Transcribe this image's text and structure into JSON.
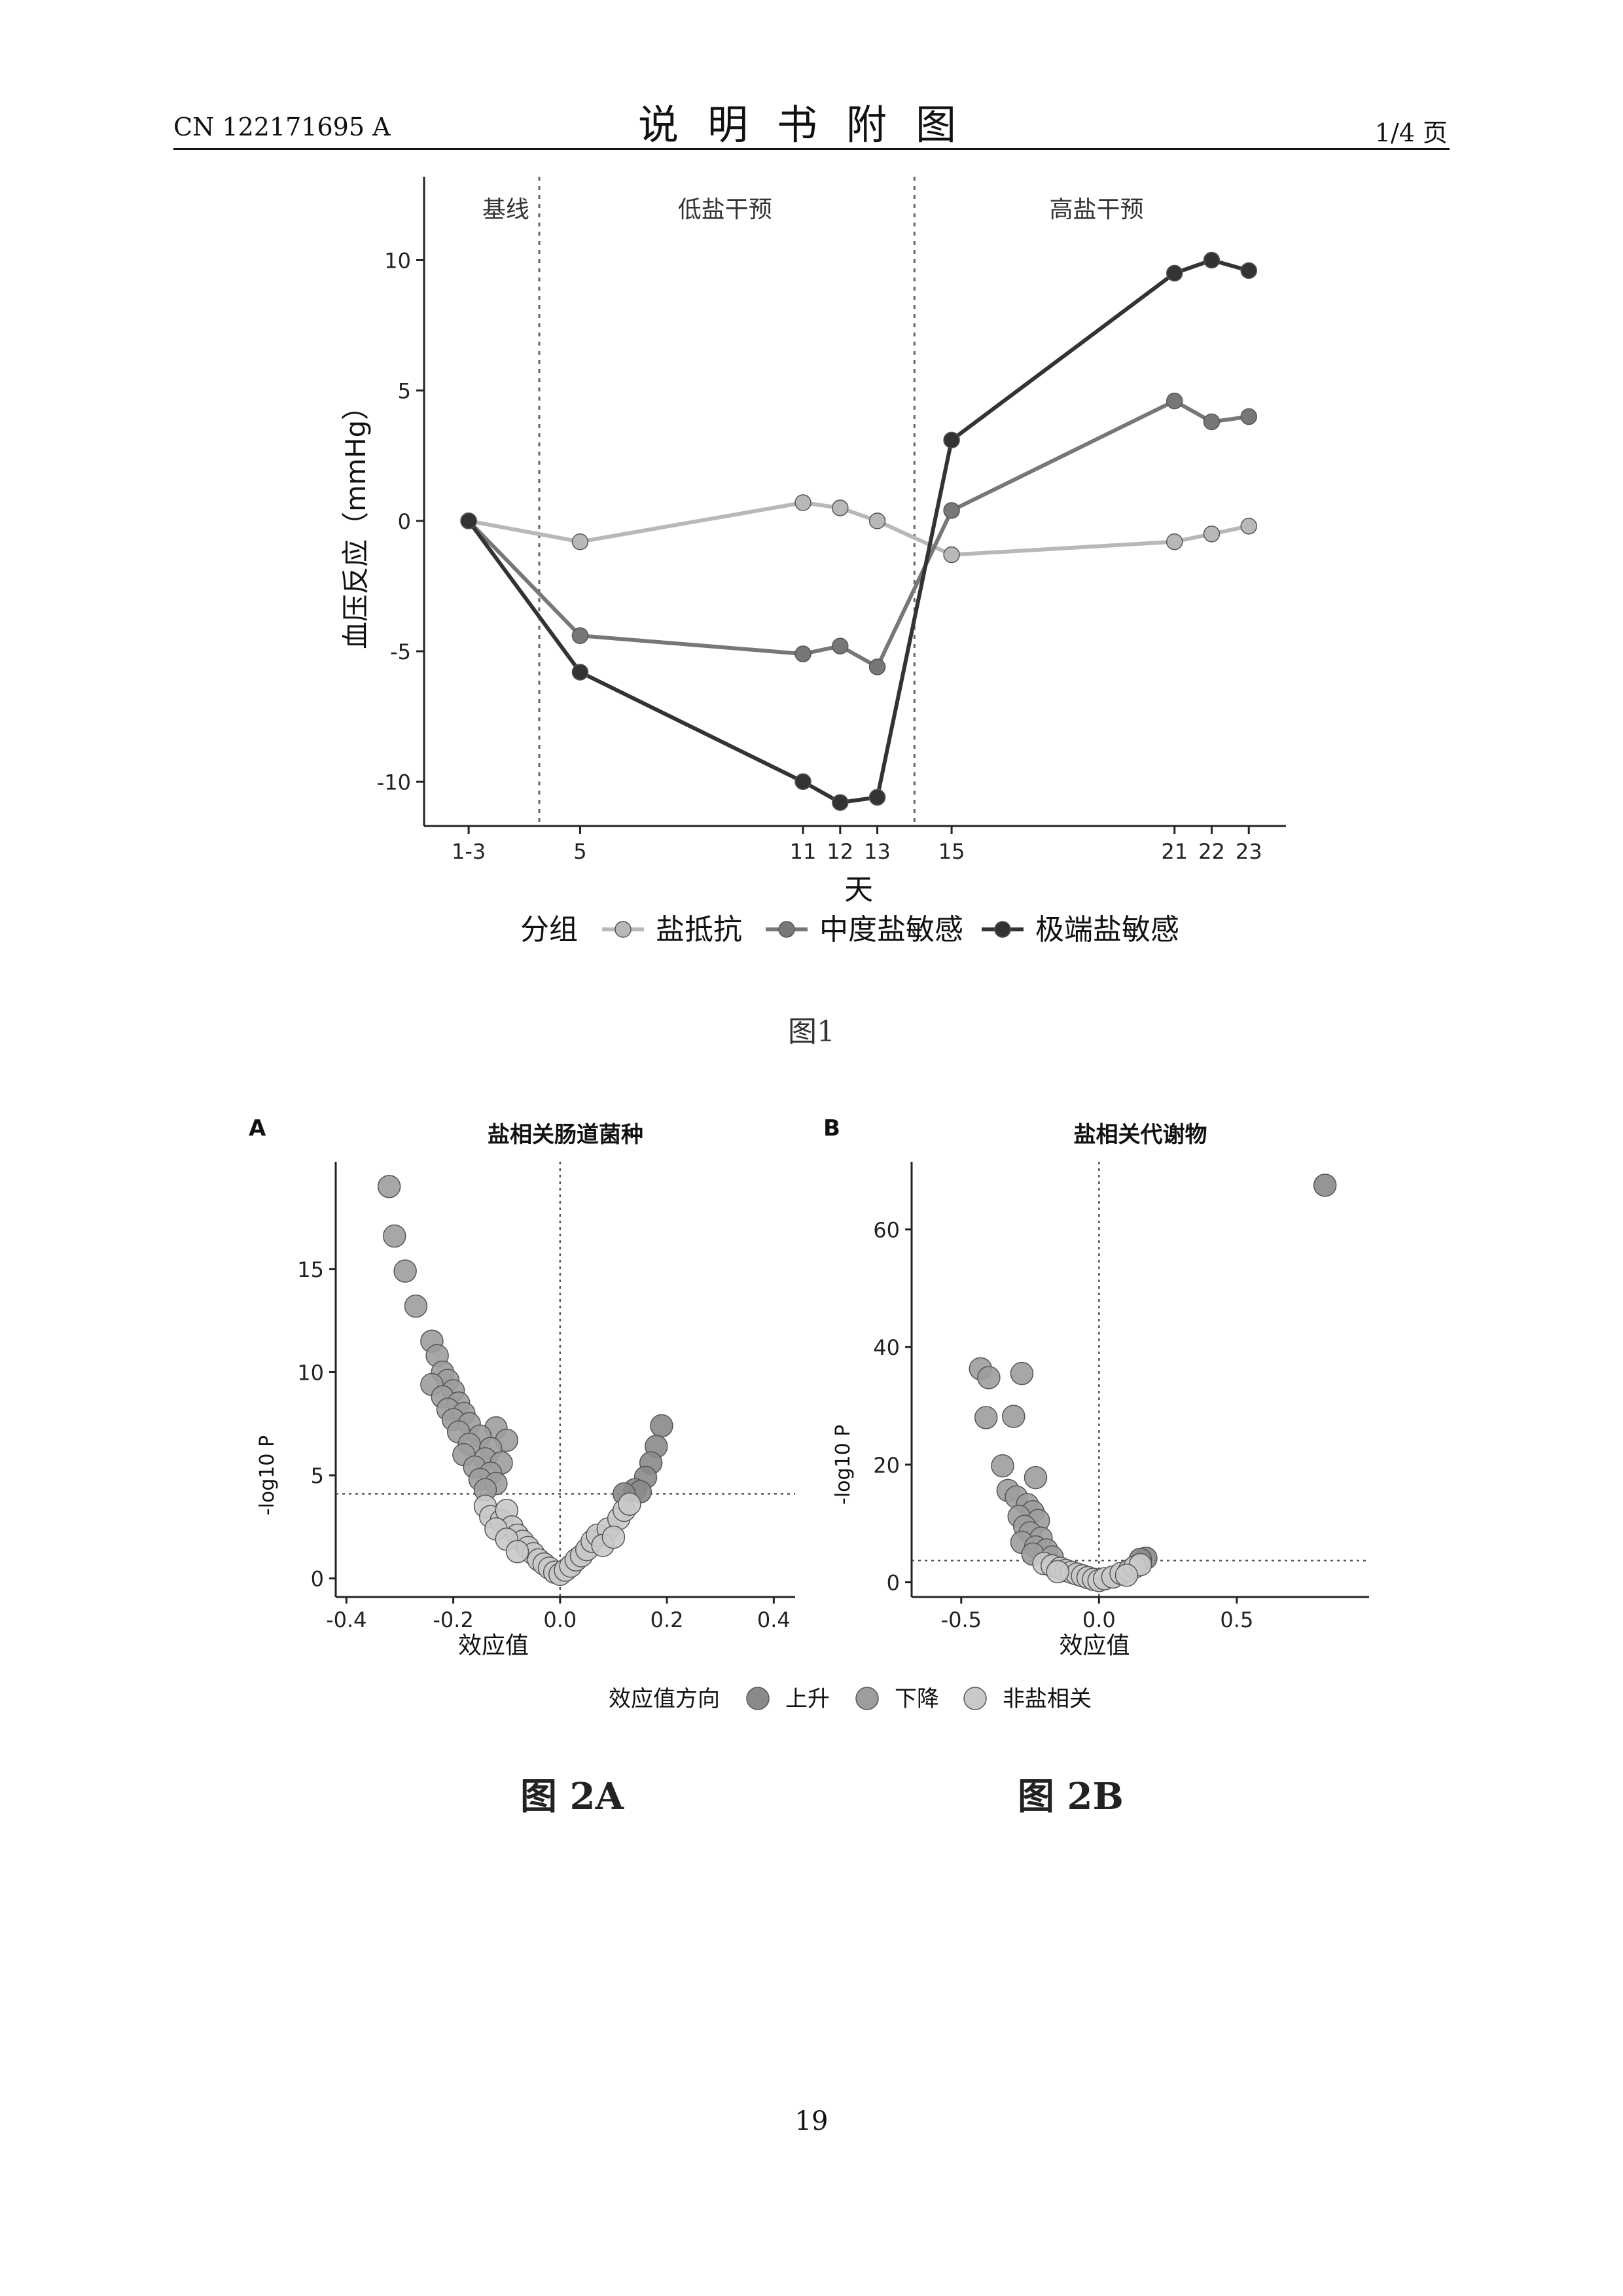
{
  "header": {
    "doc_number": "CN 122171695 A",
    "title": "说明书附图",
    "page_label": "1/4 页"
  },
  "figure1": {
    "caption": "图1",
    "chart_data": {
      "type": "line",
      "title": "",
      "xlabel": "天",
      "ylabel": "血压反应（mmHg）",
      "x_ticks": [
        "1-3",
        "5",
        "11",
        "12",
        "13",
        "15",
        "21",
        "22",
        "23"
      ],
      "x_values": [
        2,
        5,
        11,
        12,
        13,
        15,
        21,
        22,
        23
      ],
      "xlim": [
        0.8,
        24
      ],
      "ylim": [
        -11.7,
        13.2
      ],
      "y_ticks": [
        -10,
        -5,
        0,
        5,
        10
      ],
      "phases": [
        {
          "label": "基线",
          "center": 3.0
        },
        {
          "label": "低盐干预",
          "center": 8.9
        },
        {
          "label": "高盐干预",
          "center": 18.9
        }
      ],
      "phase_dividers": [
        3.9,
        14.0
      ],
      "legend_title": "分组",
      "series": [
        {
          "name": "盐抵抗",
          "color": "#b8b8b8",
          "values": [
            0,
            -0.8,
            0.7,
            0.5,
            0,
            -1.3,
            -0.8,
            -0.5,
            -0.2
          ]
        },
        {
          "name": "中度盐敏感",
          "color": "#777777",
          "values": [
            0,
            -4.4,
            -5.1,
            -4.8,
            -5.6,
            0.4,
            4.6,
            3.8,
            4.0
          ]
        },
        {
          "name": "极端盐敏感",
          "color": "#333333",
          "values": [
            0,
            -5.8,
            -10.0,
            -10.8,
            -10.6,
            3.1,
            9.5,
            10.0,
            9.6
          ]
        }
      ]
    }
  },
  "figure2": {
    "legend": {
      "title": "效应值方向",
      "items": [
        {
          "name": "上升",
          "color": "#8a8a8a"
        },
        {
          "name": "下降",
          "color": "#9d9d9d"
        },
        {
          "name": "非盐相关",
          "color": "#c9c9c9"
        }
      ]
    },
    "panels": [
      {
        "letter": "A",
        "caption": "图 2A",
        "chart_data": {
          "type": "scatter",
          "title": "盐相关肠道菌种",
          "xlabel": "效应值",
          "ylabel": "-log10 P",
          "xlim": [
            -0.42,
            0.44
          ],
          "ylim": [
            -0.9,
            20.2
          ],
          "x_ticks": [
            -0.4,
            -0.2,
            0.0,
            0.2,
            0.4
          ],
          "x_tick_labels": [
            "-0.4",
            "-0.2",
            "0.0",
            "0.2",
            "0.4"
          ],
          "y_ticks": [
            0,
            5,
            10,
            15
          ],
          "threshold_y": 4.1,
          "points": [
            [
              -0.32,
              19.0,
              "down"
            ],
            [
              -0.31,
              16.6,
              "down"
            ],
            [
              -0.29,
              14.9,
              "down"
            ],
            [
              -0.27,
              13.2,
              "down"
            ],
            [
              -0.24,
              11.5,
              "down"
            ],
            [
              -0.23,
              10.8,
              "down"
            ],
            [
              -0.22,
              10.0,
              "down"
            ],
            [
              -0.21,
              9.6,
              "down"
            ],
            [
              -0.24,
              9.4,
              "down"
            ],
            [
              -0.2,
              9.1,
              "down"
            ],
            [
              -0.22,
              8.8,
              "down"
            ],
            [
              -0.19,
              8.5,
              "down"
            ],
            [
              -0.21,
              8.2,
              "down"
            ],
            [
              -0.18,
              8.0,
              "down"
            ],
            [
              -0.2,
              7.7,
              "down"
            ],
            [
              -0.17,
              7.5,
              "down"
            ],
            [
              -0.12,
              7.3,
              "down"
            ],
            [
              -0.19,
              7.1,
              "down"
            ],
            [
              -0.15,
              6.9,
              "down"
            ],
            [
              -0.1,
              6.7,
              "down"
            ],
            [
              -0.17,
              6.5,
              "down"
            ],
            [
              -0.13,
              6.3,
              "down"
            ],
            [
              -0.18,
              6.0,
              "down"
            ],
            [
              -0.14,
              5.8,
              "down"
            ],
            [
              -0.11,
              5.6,
              "down"
            ],
            [
              -0.16,
              5.4,
              "down"
            ],
            [
              -0.13,
              5.1,
              "down"
            ],
            [
              -0.15,
              4.8,
              "down"
            ],
            [
              -0.12,
              4.6,
              "down"
            ],
            [
              -0.14,
              4.3,
              "down"
            ],
            [
              0.19,
              7.4,
              "up"
            ],
            [
              0.18,
              6.4,
              "up"
            ],
            [
              0.17,
              5.6,
              "up"
            ],
            [
              0.16,
              4.9,
              "up"
            ],
            [
              0.14,
              4.3,
              "up"
            ],
            [
              0.15,
              4.2,
              "up"
            ],
            [
              0.12,
              4.1,
              "up"
            ],
            [
              -0.14,
              3.5,
              "ns"
            ],
            [
              -0.13,
              3.0,
              "ns"
            ],
            [
              -0.11,
              2.8,
              "ns"
            ],
            [
              -0.1,
              3.3,
              "ns"
            ],
            [
              -0.09,
              2.5,
              "ns"
            ],
            [
              -0.08,
              2.1,
              "ns"
            ],
            [
              -0.12,
              2.4,
              "ns"
            ],
            [
              -0.07,
              1.8,
              "ns"
            ],
            [
              -0.06,
              1.5,
              "ns"
            ],
            [
              -0.05,
              1.2,
              "ns"
            ],
            [
              -0.04,
              0.9,
              "ns"
            ],
            [
              -0.03,
              0.7,
              "ns"
            ],
            [
              -0.02,
              0.5,
              "ns"
            ],
            [
              -0.01,
              0.3,
              "ns"
            ],
            [
              0.0,
              0.2,
              "ns"
            ],
            [
              0.01,
              0.4,
              "ns"
            ],
            [
              0.02,
              0.6,
              "ns"
            ],
            [
              0.03,
              0.9,
              "ns"
            ],
            [
              0.04,
              1.1,
              "ns"
            ],
            [
              0.05,
              1.4,
              "ns"
            ],
            [
              0.06,
              1.8,
              "ns"
            ],
            [
              0.07,
              2.1,
              "ns"
            ],
            [
              0.09,
              2.4,
              "ns"
            ],
            [
              0.11,
              2.9,
              "ns"
            ],
            [
              0.12,
              3.3,
              "ns"
            ],
            [
              0.13,
              3.6,
              "ns"
            ],
            [
              -0.1,
              1.9,
              "ns"
            ],
            [
              -0.08,
              1.3,
              "ns"
            ],
            [
              0.08,
              1.6,
              "ns"
            ],
            [
              0.1,
              2.0,
              "ns"
            ]
          ]
        }
      },
      {
        "letter": "B",
        "caption": "图 2B",
        "chart_data": {
          "type": "scatter",
          "title": "盐相关代谢物",
          "xlabel": "效应值",
          "ylabel": "-log10 P",
          "xlim": [
            -0.68,
            0.98
          ],
          "ylim": [
            -2.5,
            71.5
          ],
          "x_ticks": [
            -0.5,
            0.0,
            0.5
          ],
          "x_tick_labels": [
            "-0.5",
            "0.0",
            "0.5"
          ],
          "y_ticks": [
            0,
            20,
            40,
            60
          ],
          "threshold_y": 3.7,
          "points": [
            [
              0.82,
              67.5,
              "up"
            ],
            [
              -0.43,
              36.3,
              "down"
            ],
            [
              -0.4,
              34.8,
              "down"
            ],
            [
              -0.28,
              35.5,
              "down"
            ],
            [
              -0.41,
              28.0,
              "down"
            ],
            [
              -0.31,
              28.2,
              "down"
            ],
            [
              -0.35,
              19.8,
              "down"
            ],
            [
              -0.23,
              17.8,
              "down"
            ],
            [
              -0.33,
              15.6,
              "down"
            ],
            [
              -0.3,
              14.5,
              "down"
            ],
            [
              -0.26,
              13.2,
              "down"
            ],
            [
              -0.24,
              12.0,
              "down"
            ],
            [
              -0.29,
              11.2,
              "down"
            ],
            [
              -0.22,
              10.5,
              "down"
            ],
            [
              -0.27,
              9.5,
              "down"
            ],
            [
              -0.25,
              8.4,
              "down"
            ],
            [
              -0.21,
              7.5,
              "down"
            ],
            [
              -0.28,
              6.8,
              "down"
            ],
            [
              -0.23,
              6.0,
              "down"
            ],
            [
              -0.19,
              5.5,
              "down"
            ],
            [
              -0.24,
              4.8,
              "down"
            ],
            [
              -0.17,
              4.3,
              "down"
            ],
            [
              0.17,
              4.1,
              "up"
            ],
            [
              0.15,
              3.9,
              "up"
            ],
            [
              -0.2,
              3.2,
              "ns"
            ],
            [
              -0.17,
              2.8,
              "ns"
            ],
            [
              -0.14,
              2.4,
              "ns"
            ],
            [
              -0.12,
              2.0,
              "ns"
            ],
            [
              -0.1,
              1.7,
              "ns"
            ],
            [
              -0.08,
              1.4,
              "ns"
            ],
            [
              -0.06,
              1.1,
              "ns"
            ],
            [
              -0.04,
              0.8,
              "ns"
            ],
            [
              -0.02,
              0.5,
              "ns"
            ],
            [
              0.0,
              0.3,
              "ns"
            ],
            [
              0.02,
              0.6,
              "ns"
            ],
            [
              0.05,
              0.9,
              "ns"
            ],
            [
              0.08,
              1.5,
              "ns"
            ],
            [
              0.11,
              2.0,
              "ns"
            ],
            [
              0.13,
              2.6,
              "ns"
            ],
            [
              0.15,
              3.0,
              "ns"
            ],
            [
              -0.15,
              1.8,
              "ns"
            ],
            [
              0.1,
              1.2,
              "ns"
            ]
          ]
        }
      }
    ]
  },
  "page_number": "19"
}
